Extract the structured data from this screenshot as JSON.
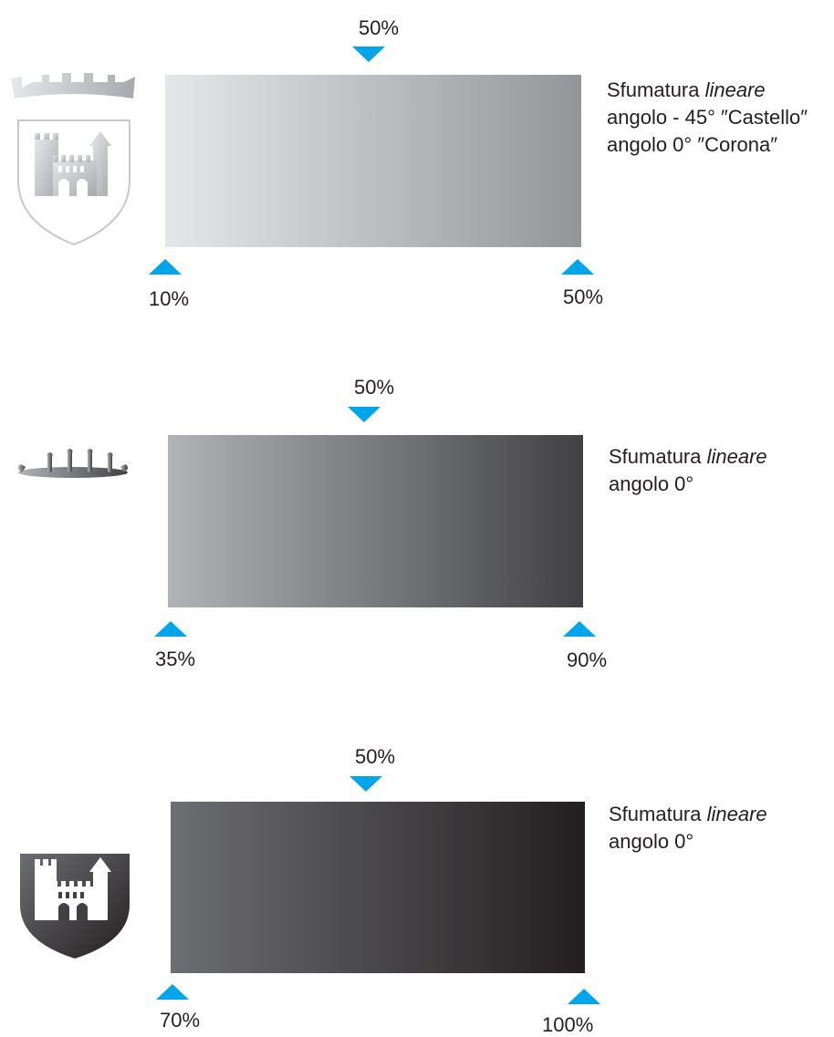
{
  "colors": {
    "marker": "#00a6e9",
    "text": "#231f20"
  },
  "panels": [
    {
      "top_label": "50%",
      "start_label": "10%",
      "end_label": "50%",
      "gradient": {
        "from": "#e6e7e9",
        "to": "#939598"
      },
      "desc_prefix": "Sfumatura ",
      "desc_italic": "lineare",
      "desc_lines": [
        "angolo - 45° ″Castello″",
        "angolo  0° ″Corona″"
      ],
      "emblem": "shield-outline-castle-crown-icon"
    },
    {
      "top_label": "50%",
      "start_label": "35%",
      "end_label": "90%",
      "gradient": {
        "from": "#b1b3b6",
        "to": "#414143"
      },
      "desc_prefix": "Sfumatura ",
      "desc_italic": "lineare",
      "desc_lines": [
        "angolo 0°"
      ],
      "emblem": "crown-ring-icon"
    },
    {
      "top_label": "50%",
      "start_label": "70%",
      "end_label": "100%",
      "gradient": {
        "from": "#6d6e71",
        "to": "#231f20"
      },
      "desc_prefix": "Sfumatura ",
      "desc_italic": "lineare",
      "desc_lines": [
        "angolo 0°"
      ],
      "emblem": "shield-dark-castle-icon"
    }
  ]
}
